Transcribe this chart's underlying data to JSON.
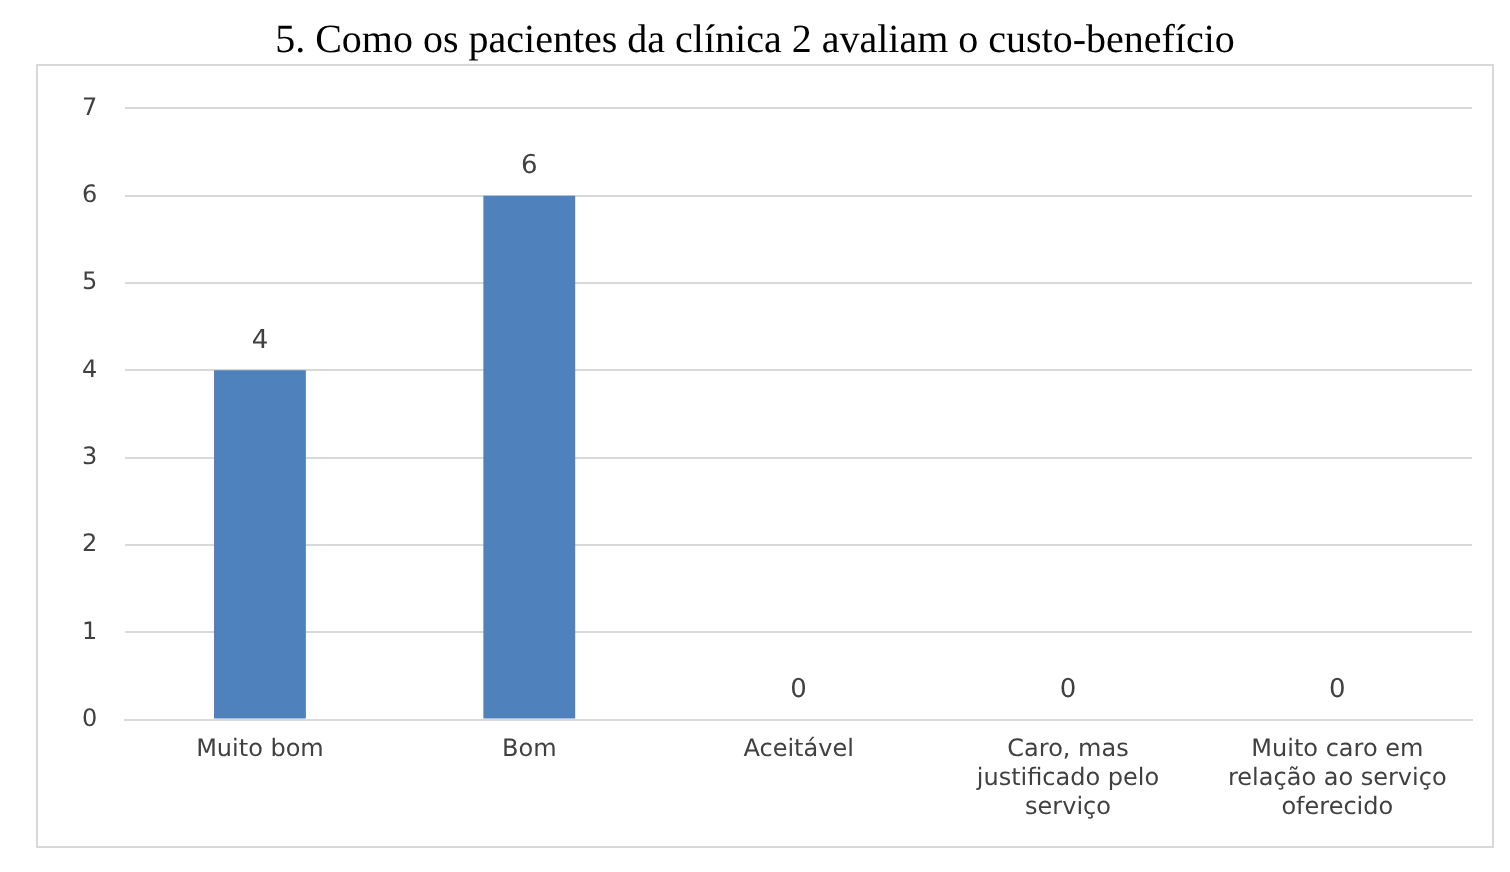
{
  "chart_data": {
    "type": "bar",
    "title": "5. Como os pacientes da clínica 2 avaliam o custo-benefício",
    "categories": [
      "Muito bom",
      "Bom",
      "Aceitável",
      "Caro, mas justificado pelo serviço",
      "Muito caro em relação ao serviço oferecido"
    ],
    "values": [
      4,
      6,
      0,
      0,
      0
    ],
    "color": "#4f81bd",
    "ylim": [
      0,
      7
    ],
    "yticks": [
      0,
      1,
      2,
      3,
      4,
      5,
      6,
      7
    ],
    "grid": "y",
    "data_labels": true,
    "legend": false
  }
}
